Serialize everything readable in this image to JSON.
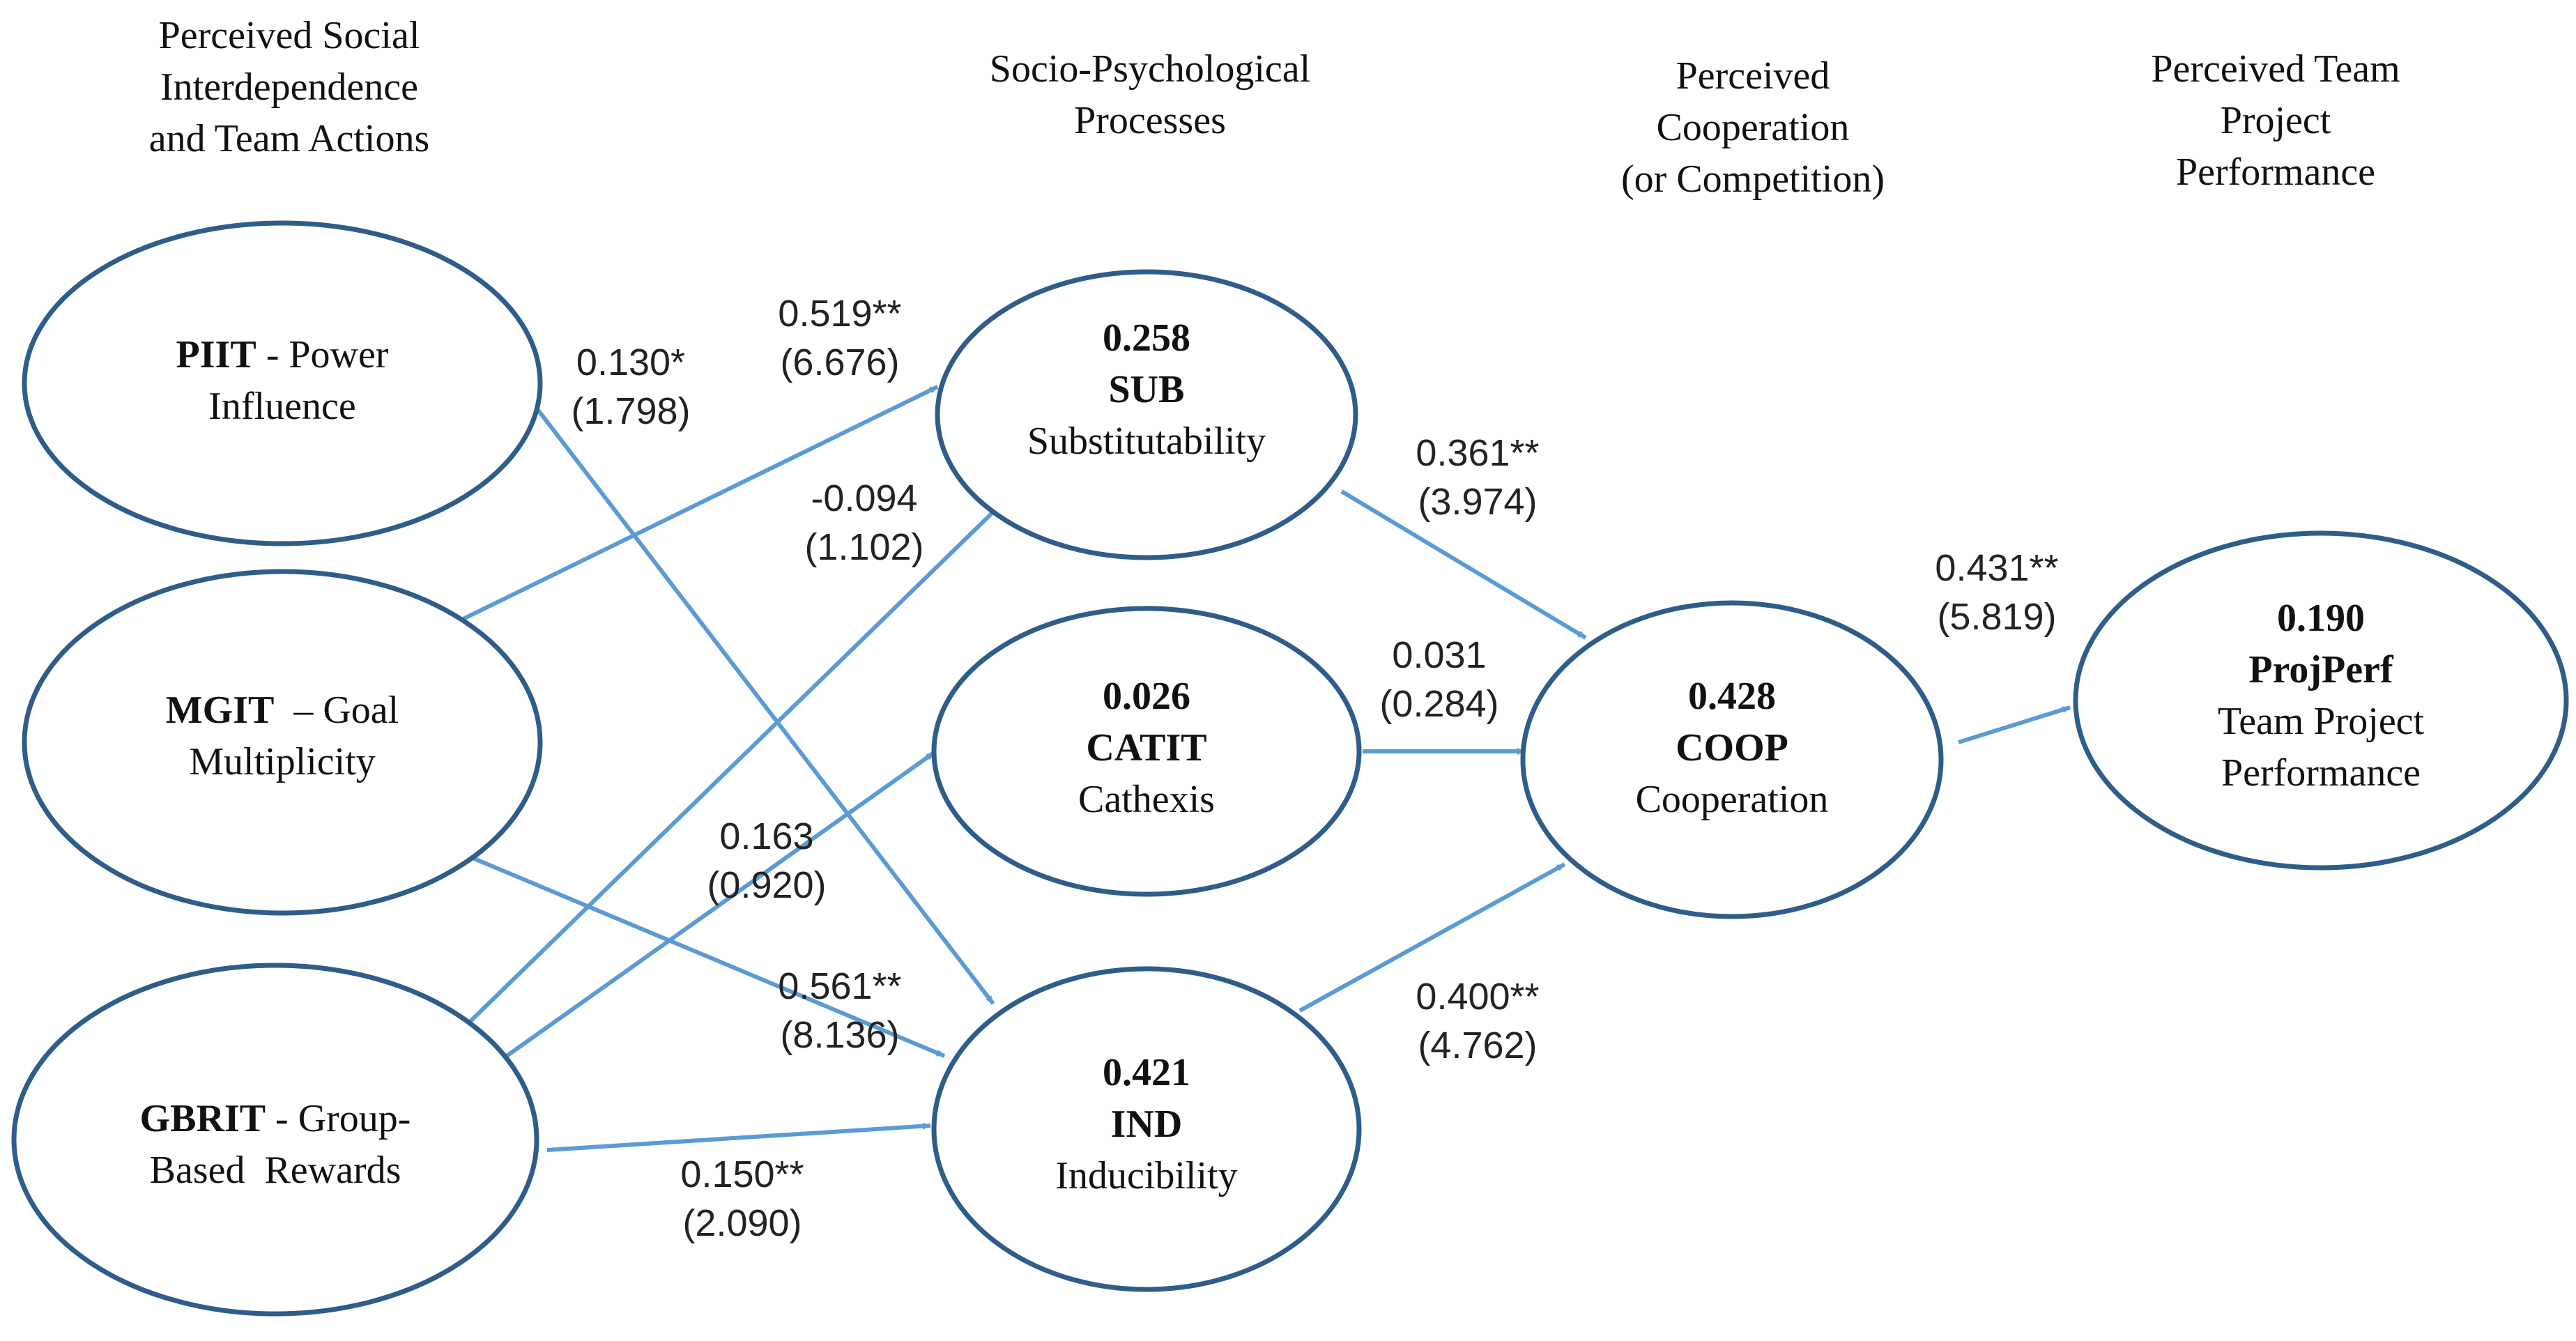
{
  "headers": {
    "h1": [
      "Perceived Social",
      "Interdependence",
      "and Team  Actions"
    ],
    "h2": [
      "Socio-Psychological",
      "Processes"
    ],
    "h3": [
      "Perceived",
      "Cooperation",
      "(or Competition)"
    ],
    "h4": [
      "Perceived Team",
      "Project",
      "Performance"
    ]
  },
  "nodes": {
    "piit": {
      "code": "PIIT",
      "label1": " - Power",
      "label2": "Influence"
    },
    "mgit": {
      "code": "MGIT",
      "label1": "  – Goal",
      "label2": "Multiplicity"
    },
    "gbrit": {
      "code": "GBRIT",
      "label1": " - Group-",
      "label2": "Based  Rewards"
    },
    "sub": {
      "value": "0.258",
      "code": "SUB",
      "label": "Substitutability"
    },
    "catit": {
      "value": "0.026",
      "code": "CATIT",
      "label": "Cathexis"
    },
    "ind": {
      "value": "0.421",
      "code": "IND",
      "label": "Inducibility"
    },
    "coop": {
      "value": "0.428",
      "code": "COOP",
      "label": "Cooperation"
    },
    "proj": {
      "value": "0.190",
      "code": "ProjPerf",
      "label1": "Team Project",
      "label2": "Performance"
    }
  },
  "paths": {
    "piit_ind": {
      "coef": "0.130*",
      "t": "(1.798)"
    },
    "mgit_sub": {
      "coef": "0.519**",
      "t": "(6.676)"
    },
    "gbrit_sub": {
      "coef": "-0.094",
      "t": "(1.102)"
    },
    "gbrit_cat": {
      "coef": "0.163",
      "t": "(0.920)"
    },
    "mgit_ind": {
      "coef": "0.561**",
      "t": "(8.136)"
    },
    "gbrit_ind": {
      "coef": "0.150**",
      "t": "(2.090)"
    },
    "sub_coop": {
      "coef": "0.361**",
      "t": "(3.974)"
    },
    "cat_coop": {
      "coef": "0.031",
      "t": "(0.284)"
    },
    "ind_coop": {
      "coef": "0.400**",
      "t": "(4.762)"
    },
    "coop_proj": {
      "coef": "0.431**",
      "t": "(5.819)"
    }
  },
  "colors": {
    "ellipse_stroke": "#2f5d8a",
    "arrow": "#5b9bd5"
  }
}
